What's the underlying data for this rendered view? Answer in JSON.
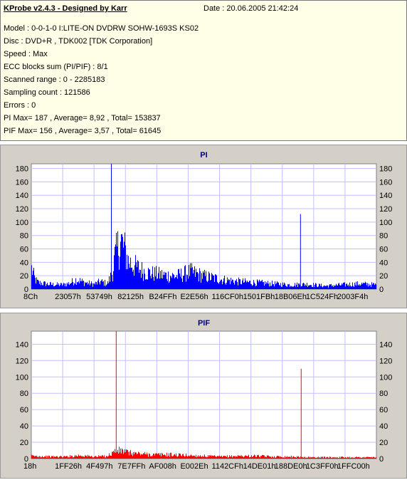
{
  "info": {
    "title": "KProbe v2.4.3 - Designed by Karr",
    "date": "Date : 20.06.2005 21:42:24",
    "lines": [
      "Model : 0-0-1-0 I:LITE-ON DVDRW SOHW-1693S KS02",
      "Disc : DVD+R , TDK002 [TDK Corporation]",
      "Speed : Max",
      "ECC blocks sum (PI/PIF) : 8/1",
      "Scanned range : 0 - 2285183",
      "Sampling count : 121586",
      "Errors : 0",
      "PI Max= 187 , Average= 8,92 , Total= 153837",
      "PIF Max= 156 , Average= 3,57 , Total= 61645"
    ]
  },
  "chart_data": [
    {
      "type": "area",
      "title": "PI",
      "color": "#0000ff",
      "ylim": [
        0,
        187
      ],
      "yticks": [
        0,
        20,
        40,
        60,
        80,
        100,
        120,
        140,
        160,
        180
      ],
      "xticks": [
        "8Ch",
        "23057h",
        "53749h",
        "82125h",
        "B24FFh",
        "E2E56h",
        "116CF0h",
        "1501FBh",
        "18B06Eh",
        "1C524Fh",
        "2003F4h"
      ],
      "x_range": [
        0,
        1
      ],
      "envelope": [
        [
          0.0,
          38
        ],
        [
          0.01,
          18
        ],
        [
          0.02,
          12
        ],
        [
          0.05,
          9
        ],
        [
          0.09,
          8
        ],
        [
          0.11,
          11
        ],
        [
          0.13,
          18
        ],
        [
          0.15,
          13
        ],
        [
          0.18,
          9
        ],
        [
          0.2,
          14
        ],
        [
          0.22,
          10
        ],
        [
          0.235,
          32
        ],
        [
          0.24,
          55
        ],
        [
          0.25,
          78
        ],
        [
          0.26,
          88
        ],
        [
          0.27,
          72
        ],
        [
          0.28,
          52
        ],
        [
          0.3,
          42
        ],
        [
          0.32,
          35
        ],
        [
          0.34,
          30
        ],
        [
          0.38,
          26
        ],
        [
          0.42,
          24
        ],
        [
          0.44,
          28
        ],
        [
          0.46,
          32
        ],
        [
          0.48,
          28
        ],
        [
          0.5,
          24
        ],
        [
          0.55,
          18
        ],
        [
          0.6,
          14
        ],
        [
          0.65,
          12
        ],
        [
          0.7,
          10
        ],
        [
          0.75,
          8
        ],
        [
          0.8,
          9
        ],
        [
          0.85,
          6
        ],
        [
          0.9,
          8
        ],
        [
          0.95,
          10
        ],
        [
          1.0,
          8
        ]
      ],
      "spikes": [
        [
          0.232,
          187
        ],
        [
          0.78,
          112
        ]
      ]
    },
    {
      "type": "area",
      "title": "PIF",
      "color": "#ff0000",
      "ylim": [
        0,
        156
      ],
      "yticks": [
        0,
        20,
        40,
        60,
        80,
        100,
        120,
        140
      ],
      "xticks": [
        "18h",
        "1FF26h",
        "4F497h",
        "7E7FFh",
        "AF008h",
        "E002Eh",
        "1142CFh",
        "14DE01h",
        "188DE0h",
        "1C3FF0h",
        "1FFC00h"
      ],
      "x_range": [
        0,
        1
      ],
      "envelope": [
        [
          0.0,
          4
        ],
        [
          0.05,
          3
        ],
        [
          0.1,
          3
        ],
        [
          0.14,
          5
        ],
        [
          0.16,
          4
        ],
        [
          0.18,
          3
        ],
        [
          0.22,
          4
        ],
        [
          0.24,
          11
        ],
        [
          0.26,
          12
        ],
        [
          0.28,
          9
        ],
        [
          0.3,
          8
        ],
        [
          0.35,
          6
        ],
        [
          0.4,
          6
        ],
        [
          0.45,
          5
        ],
        [
          0.5,
          4
        ],
        [
          0.55,
          3
        ],
        [
          0.6,
          4
        ],
        [
          0.65,
          4
        ],
        [
          0.7,
          3
        ],
        [
          0.75,
          3
        ],
        [
          0.8,
          2
        ],
        [
          0.9,
          2
        ],
        [
          1.0,
          2
        ]
      ],
      "spikes": [
        [
          0.246,
          156
        ],
        [
          0.782,
          110
        ]
      ]
    }
  ]
}
